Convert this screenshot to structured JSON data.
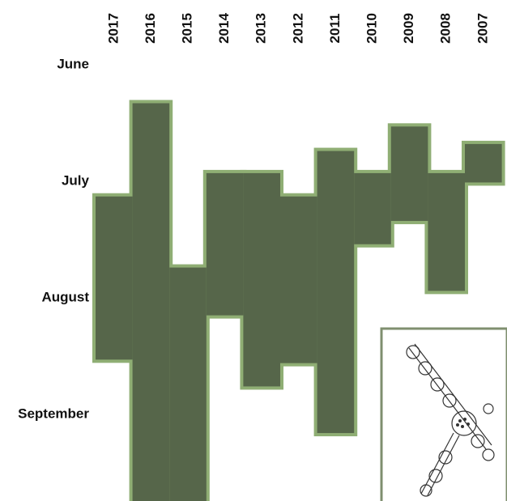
{
  "chart_data": {
    "type": "floating-bar",
    "categories": [
      "2017",
      "2016",
      "2015",
      "2014",
      "2013",
      "2012",
      "2011",
      "2010",
      "2009",
      "2008",
      "2007"
    ],
    "low": [
      7.13,
      6.33,
      7.74,
      6.93,
      6.93,
      7.13,
      6.74,
      6.93,
      6.53,
      6.93,
      6.68
    ],
    "high": [
      8.53,
      9.75,
      9.75,
      8.15,
      8.76,
      8.56,
      9.16,
      7.54,
      7.34,
      7.94,
      7.01
    ],
    "color": "#56664a",
    "edge_color": "#8fae74",
    "ylim": [
      6,
      9.75
    ],
    "yticks": [
      {
        "value": 6,
        "label": "June"
      },
      {
        "value": 7,
        "label": "July"
      },
      {
        "value": 8,
        "label": "August"
      },
      {
        "value": 9,
        "label": "September"
      }
    ]
  }
}
